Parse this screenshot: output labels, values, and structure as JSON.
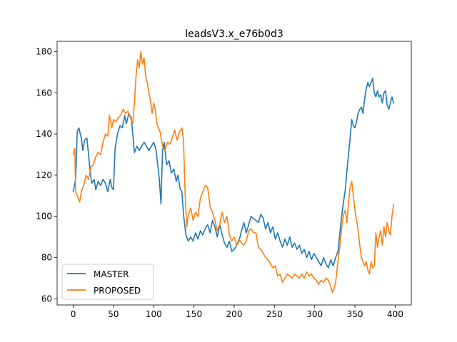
{
  "chart_data": {
    "type": "line",
    "title": "leadsV3.x_e76b0d3",
    "xlabel": "",
    "ylabel": "",
    "xlim": [
      -20,
      420
    ],
    "ylim": [
      57,
      185
    ],
    "xticks": [
      0,
      50,
      100,
      150,
      200,
      250,
      300,
      350,
      400
    ],
    "yticks": [
      60,
      80,
      100,
      120,
      140,
      160,
      180
    ],
    "grid": false,
    "legend_position": "lower-left",
    "series": [
      {
        "name": "MASTER",
        "color": "#1f77b4",
        "points": [
          [
            0,
            112
          ],
          [
            3,
            118
          ],
          [
            5,
            141
          ],
          [
            7,
            143
          ],
          [
            10,
            138
          ],
          [
            12,
            132
          ],
          [
            14,
            137
          ],
          [
            17,
            138
          ],
          [
            19,
            130
          ],
          [
            21,
            122
          ],
          [
            23,
            116
          ],
          [
            26,
            118
          ],
          [
            28,
            113
          ],
          [
            31,
            117
          ],
          [
            34,
            115
          ],
          [
            37,
            118
          ],
          [
            40,
            116
          ],
          [
            43,
            112
          ],
          [
            46,
            118
          ],
          [
            48,
            114
          ],
          [
            50,
            113
          ],
          [
            52,
            133
          ],
          [
            55,
            140
          ],
          [
            58,
            144
          ],
          [
            61,
            143
          ],
          [
            64,
            149
          ],
          [
            66,
            145
          ],
          [
            69,
            150
          ],
          [
            72,
            148
          ],
          [
            74,
            140
          ],
          [
            76,
            131
          ],
          [
            79,
            134
          ],
          [
            82,
            132
          ],
          [
            85,
            134
          ],
          [
            88,
            136
          ],
          [
            91,
            134
          ],
          [
            94,
            132
          ],
          [
            97,
            134
          ],
          [
            100,
            136
          ],
          [
            103,
            132
          ],
          [
            105,
            125
          ],
          [
            107,
            118
          ],
          [
            109,
            106
          ],
          [
            111,
            132
          ],
          [
            113,
            136
          ],
          [
            116,
            125
          ],
          [
            119,
            127
          ],
          [
            122,
            121
          ],
          [
            125,
            123
          ],
          [
            128,
            117
          ],
          [
            130,
            120
          ],
          [
            133,
            113
          ],
          [
            135,
            112
          ],
          [
            137,
            101
          ],
          [
            140,
            91
          ],
          [
            143,
            88
          ],
          [
            146,
            90
          ],
          [
            149,
            88
          ],
          [
            152,
            92
          ],
          [
            155,
            89
          ],
          [
            158,
            93
          ],
          [
            161,
            91
          ],
          [
            164,
            94
          ],
          [
            167,
            96
          ],
          [
            170,
            92
          ],
          [
            173,
            98
          ],
          [
            176,
            95
          ],
          [
            179,
            90
          ],
          [
            182,
            96
          ],
          [
            185,
            91
          ],
          [
            188,
            87
          ],
          [
            191,
            85
          ],
          [
            194,
            88
          ],
          [
            197,
            83
          ],
          [
            200,
            84
          ],
          [
            203,
            86
          ],
          [
            206,
            88
          ],
          [
            209,
            93
          ],
          [
            212,
            97
          ],
          [
            215,
            92
          ],
          [
            218,
            96
          ],
          [
            221,
            100
          ],
          [
            224,
            99
          ],
          [
            227,
            98
          ],
          [
            230,
            97
          ],
          [
            233,
            101
          ],
          [
            236,
            99
          ],
          [
            239,
            94
          ],
          [
            242,
            97
          ],
          [
            245,
            92
          ],
          [
            248,
            95
          ],
          [
            251,
            89
          ],
          [
            254,
            92
          ],
          [
            257,
            88
          ],
          [
            260,
            85
          ],
          [
            263,
            89
          ],
          [
            266,
            86
          ],
          [
            269,
            90
          ],
          [
            272,
            85
          ],
          [
            275,
            87
          ],
          [
            278,
            84
          ],
          [
            281,
            86
          ],
          [
            284,
            82
          ],
          [
            287,
            84
          ],
          [
            290,
            80
          ],
          [
            293,
            83
          ],
          [
            296,
            79
          ],
          [
            299,
            82
          ],
          [
            302,
            80
          ],
          [
            305,
            78
          ],
          [
            308,
            76
          ],
          [
            311,
            80
          ],
          [
            314,
            77
          ],
          [
            317,
            75
          ],
          [
            320,
            79
          ],
          [
            323,
            76
          ],
          [
            326,
            80
          ],
          [
            329,
            83
          ],
          [
            332,
            95
          ],
          [
            335,
            105
          ],
          [
            338,
            113
          ],
          [
            340,
            122
          ],
          [
            342,
            130
          ],
          [
            344,
            138
          ],
          [
            346,
            147
          ],
          [
            348,
            144
          ],
          [
            350,
            143
          ],
          [
            352,
            146
          ],
          [
            354,
            150
          ],
          [
            356,
            152
          ],
          [
            358,
            153
          ],
          [
            360,
            150
          ],
          [
            362,
            157
          ],
          [
            364,
            162
          ],
          [
            366,
            165
          ],
          [
            368,
            163
          ],
          [
            370,
            165
          ],
          [
            372,
            167
          ],
          [
            374,
            160
          ],
          [
            376,
            158
          ],
          [
            378,
            161
          ],
          [
            380,
            158
          ],
          [
            382,
            159
          ],
          [
            384,
            155
          ],
          [
            386,
            160
          ],
          [
            388,
            161
          ],
          [
            390,
            154
          ],
          [
            392,
            152
          ],
          [
            394,
            155
          ],
          [
            396,
            158
          ],
          [
            398,
            155
          ]
        ]
      },
      {
        "name": "PROPOSED",
        "color": "#ff7f0e",
        "points": [
          [
            0,
            130
          ],
          [
            2,
            133
          ],
          [
            3,
            112
          ],
          [
            5,
            110
          ],
          [
            8,
            107
          ],
          [
            10,
            112
          ],
          [
            13,
            115
          ],
          [
            16,
            120
          ],
          [
            19,
            118
          ],
          [
            22,
            124
          ],
          [
            25,
            125
          ],
          [
            28,
            129
          ],
          [
            31,
            131
          ],
          [
            34,
            130
          ],
          [
            37,
            136
          ],
          [
            40,
            140
          ],
          [
            43,
            139
          ],
          [
            45,
            149
          ],
          [
            48,
            143
          ],
          [
            50,
            147
          ],
          [
            53,
            146
          ],
          [
            56,
            148
          ],
          [
            59,
            149
          ],
          [
            62,
            152
          ],
          [
            65,
            150
          ],
          [
            68,
            151
          ],
          [
            71,
            148
          ],
          [
            74,
            145
          ],
          [
            76,
            155
          ],
          [
            78,
            168
          ],
          [
            80,
            176
          ],
          [
            82,
            172
          ],
          [
            84,
            180
          ],
          [
            86,
            174
          ],
          [
            88,
            177
          ],
          [
            90,
            168
          ],
          [
            92,
            165
          ],
          [
            94,
            160
          ],
          [
            96,
            156
          ],
          [
            98,
            150
          ],
          [
            100,
            155
          ],
          [
            102,
            152
          ],
          [
            104,
            145
          ],
          [
            106,
            143
          ],
          [
            108,
            141
          ],
          [
            111,
            134
          ],
          [
            114,
            132
          ],
          [
            117,
            136
          ],
          [
            120,
            135
          ],
          [
            123,
            138
          ],
          [
            126,
            142
          ],
          [
            129,
            137
          ],
          [
            132,
            141
          ],
          [
            135,
            143
          ],
          [
            137,
            137
          ],
          [
            139,
            111
          ],
          [
            141,
            95
          ],
          [
            143,
            101
          ],
          [
            146,
            104
          ],
          [
            149,
            98
          ],
          [
            152,
            102
          ],
          [
            155,
            100
          ],
          [
            158,
            109
          ],
          [
            161,
            112
          ],
          [
            164,
            115
          ],
          [
            167,
            114
          ],
          [
            170,
            105
          ],
          [
            173,
            102
          ],
          [
            176,
            98
          ],
          [
            179,
            93
          ],
          [
            182,
            96
          ],
          [
            185,
            102
          ],
          [
            188,
            97
          ],
          [
            191,
            100
          ],
          [
            194,
            91
          ],
          [
            197,
            88
          ],
          [
            200,
            90
          ],
          [
            203,
            86
          ],
          [
            206,
            89
          ],
          [
            209,
            87
          ],
          [
            212,
            86
          ],
          [
            215,
            88
          ],
          [
            218,
            93
          ],
          [
            221,
            94
          ],
          [
            224,
            92
          ],
          [
            227,
            92
          ],
          [
            230,
            85
          ],
          [
            233,
            84
          ],
          [
            236,
            82
          ],
          [
            239,
            80
          ],
          [
            242,
            79
          ],
          [
            245,
            77
          ],
          [
            248,
            75
          ],
          [
            251,
            76
          ],
          [
            254,
            71
          ],
          [
            257,
            72
          ],
          [
            260,
            68
          ],
          [
            263,
            70
          ],
          [
            266,
            72
          ],
          [
            269,
            71
          ],
          [
            272,
            70
          ],
          [
            275,
            72
          ],
          [
            278,
            71
          ],
          [
            281,
            70
          ],
          [
            284,
            72
          ],
          [
            287,
            70
          ],
          [
            290,
            73
          ],
          [
            293,
            71
          ],
          [
            296,
            72
          ],
          [
            299,
            70
          ],
          [
            302,
            69
          ],
          [
            305,
            67
          ],
          [
            308,
            69
          ],
          [
            311,
            68
          ],
          [
            314,
            70
          ],
          [
            317,
            69
          ],
          [
            320,
            66
          ],
          [
            322,
            63
          ],
          [
            324,
            65
          ],
          [
            326,
            68
          ],
          [
            328,
            75
          ],
          [
            330,
            82
          ],
          [
            332,
            88
          ],
          [
            334,
            96
          ],
          [
            336,
            101
          ],
          [
            338,
            103
          ],
          [
            340,
            97
          ],
          [
            342,
            107
          ],
          [
            344,
            114
          ],
          [
            346,
            117
          ],
          [
            348,
            110
          ],
          [
            350,
            103
          ],
          [
            352,
            98
          ],
          [
            354,
            93
          ],
          [
            356,
            86
          ],
          [
            358,
            80
          ],
          [
            360,
            78
          ],
          [
            362,
            76
          ],
          [
            364,
            78
          ],
          [
            366,
            74
          ],
          [
            368,
            72
          ],
          [
            370,
            78
          ],
          [
            372,
            75
          ],
          [
            374,
            76
          ],
          [
            376,
            92
          ],
          [
            378,
            85
          ],
          [
            380,
            90
          ],
          [
            382,
            93
          ],
          [
            384,
            86
          ],
          [
            386,
            95
          ],
          [
            388,
            90
          ],
          [
            390,
            97
          ],
          [
            392,
            93
          ],
          [
            394,
            91
          ],
          [
            396,
            100
          ],
          [
            398,
            106
          ]
        ]
      }
    ]
  }
}
